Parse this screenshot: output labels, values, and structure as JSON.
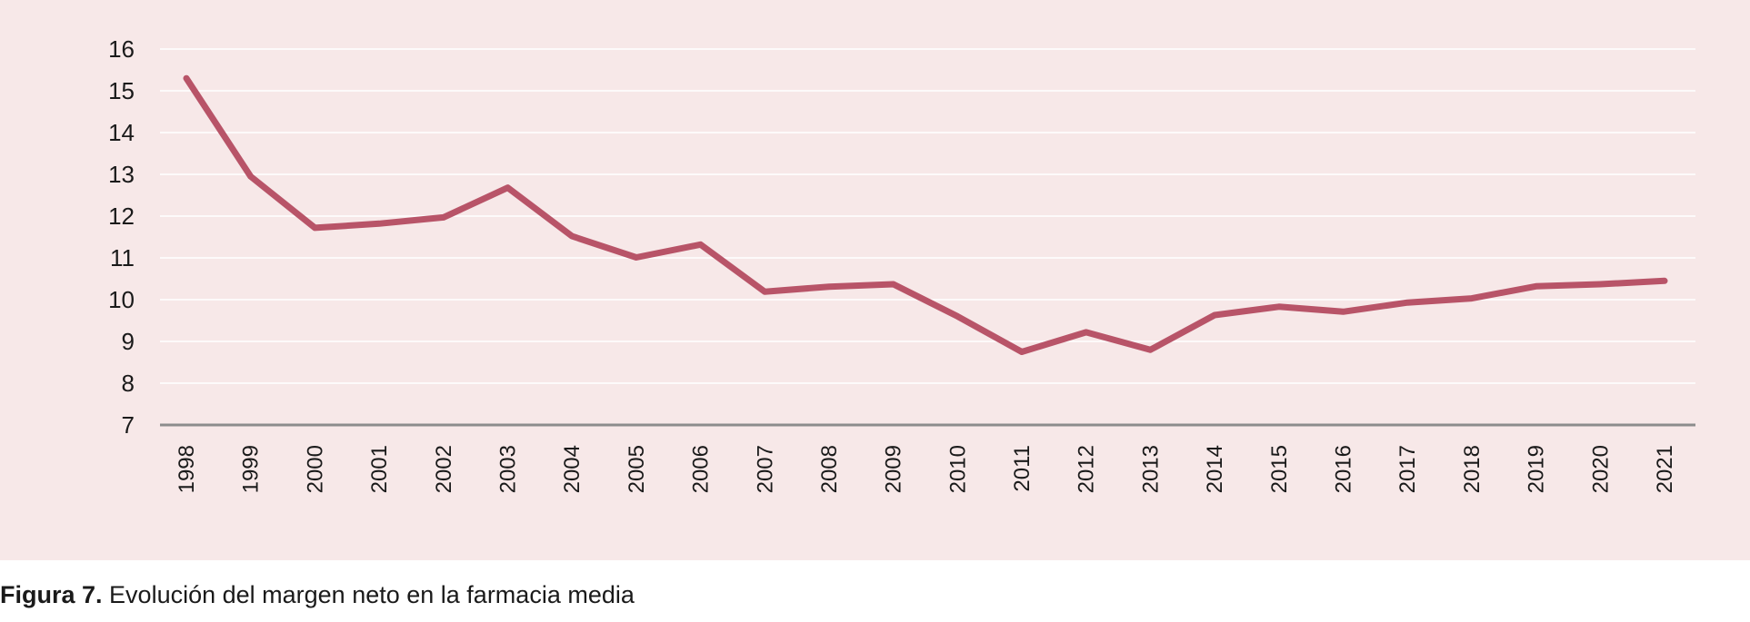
{
  "caption": {
    "label": "Figura 7.",
    "text": "Evolución del margen neto en la farmacia media"
  },
  "colors": {
    "panel_background": "#f7e8e8",
    "line": "#b85468",
    "gridline": "#ffffff",
    "baseline": "#8c8c8c"
  },
  "chart_data": {
    "type": "line",
    "title": "",
    "xlabel": "",
    "ylabel": "",
    "ylim": [
      7,
      16
    ],
    "yticks": [
      "7",
      "8",
      "9",
      "10",
      "11",
      "12",
      "13",
      "14",
      "15",
      "16"
    ],
    "grid": true,
    "categories": [
      "1998",
      "1999",
      "2000",
      "2001",
      "2002",
      "2003",
      "2004",
      "2005",
      "2006",
      "2007",
      "2008",
      "2009",
      "2010",
      "2011",
      "2012",
      "2013",
      "2014",
      "2015",
      "2016",
      "2017",
      "2018",
      "2019",
      "2020",
      "2021"
    ],
    "series": [
      {
        "values": [
          15.3,
          12.95,
          11.72,
          11.82,
          11.97,
          12.68,
          11.52,
          11.01,
          11.32,
          10.19,
          10.31,
          10.37,
          9.6,
          8.75,
          9.22,
          8.8,
          9.63,
          9.83,
          9.71,
          9.93,
          10.03,
          10.32,
          10.37,
          10.45
        ]
      }
    ]
  }
}
